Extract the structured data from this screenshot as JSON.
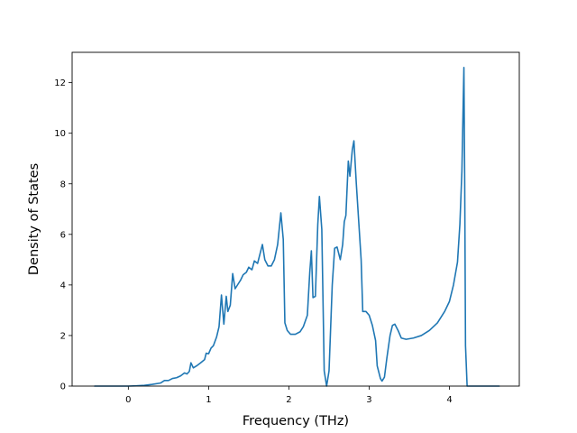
{
  "chart_data": {
    "type": "line",
    "title": "",
    "xlabel": "Frequency (THz)",
    "ylabel": "Density of States",
    "xlim": [
      -0.7,
      4.87
    ],
    "ylim": [
      0,
      13.2
    ],
    "xticks": [
      0,
      1,
      2,
      3,
      4
    ],
    "yticks": [
      0,
      2,
      4,
      6,
      8,
      10,
      12
    ],
    "grid": false,
    "series": [
      {
        "color": "#1f77b4",
        "points": [
          [
            -0.42,
            0.0
          ],
          [
            0.0,
            0.0
          ],
          [
            0.1,
            0.01
          ],
          [
            0.2,
            0.03
          ],
          [
            0.3,
            0.07
          ],
          [
            0.4,
            0.12
          ],
          [
            0.45,
            0.22
          ],
          [
            0.5,
            0.22
          ],
          [
            0.55,
            0.3
          ],
          [
            0.6,
            0.33
          ],
          [
            0.65,
            0.4
          ],
          [
            0.7,
            0.52
          ],
          [
            0.73,
            0.48
          ],
          [
            0.76,
            0.58
          ],
          [
            0.78,
            0.92
          ],
          [
            0.81,
            0.72
          ],
          [
            0.85,
            0.8
          ],
          [
            0.9,
            0.92
          ],
          [
            0.95,
            1.05
          ],
          [
            0.97,
            1.3
          ],
          [
            1.0,
            1.28
          ],
          [
            1.03,
            1.5
          ],
          [
            1.06,
            1.6
          ],
          [
            1.1,
            1.95
          ],
          [
            1.13,
            2.35
          ],
          [
            1.16,
            3.6
          ],
          [
            1.19,
            2.45
          ],
          [
            1.22,
            3.55
          ],
          [
            1.24,
            2.95
          ],
          [
            1.27,
            3.2
          ],
          [
            1.3,
            4.45
          ],
          [
            1.33,
            3.85
          ],
          [
            1.36,
            4.0
          ],
          [
            1.4,
            4.2
          ],
          [
            1.43,
            4.4
          ],
          [
            1.47,
            4.5
          ],
          [
            1.5,
            4.7
          ],
          [
            1.54,
            4.6
          ],
          [
            1.57,
            4.95
          ],
          [
            1.61,
            4.85
          ],
          [
            1.65,
            5.35
          ],
          [
            1.67,
            5.6
          ],
          [
            1.7,
            5.0
          ],
          [
            1.74,
            4.75
          ],
          [
            1.78,
            4.75
          ],
          [
            1.82,
            5.0
          ],
          [
            1.86,
            5.6
          ],
          [
            1.9,
            6.85
          ],
          [
            1.93,
            5.8
          ],
          [
            1.95,
            2.5
          ],
          [
            1.98,
            2.2
          ],
          [
            2.02,
            2.05
          ],
          [
            2.08,
            2.05
          ],
          [
            2.14,
            2.15
          ],
          [
            2.18,
            2.35
          ],
          [
            2.23,
            2.8
          ],
          [
            2.26,
            4.5
          ],
          [
            2.28,
            5.35
          ],
          [
            2.3,
            3.5
          ],
          [
            2.33,
            3.55
          ],
          [
            2.36,
            6.4
          ],
          [
            2.38,
            7.5
          ],
          [
            2.41,
            6.2
          ],
          [
            2.44,
            0.6
          ],
          [
            2.47,
            0.0
          ],
          [
            2.5,
            0.6
          ],
          [
            2.54,
            4.0
          ],
          [
            2.57,
            5.45
          ],
          [
            2.6,
            5.5
          ],
          [
            2.64,
            5.0
          ],
          [
            2.67,
            5.6
          ],
          [
            2.69,
            6.5
          ],
          [
            2.71,
            6.75
          ],
          [
            2.74,
            8.9
          ],
          [
            2.76,
            8.3
          ],
          [
            2.79,
            9.35
          ],
          [
            2.81,
            9.7
          ],
          [
            2.84,
            8.0
          ],
          [
            2.87,
            6.5
          ],
          [
            2.9,
            5.0
          ],
          [
            2.92,
            2.95
          ],
          [
            2.96,
            2.95
          ],
          [
            3.0,
            2.8
          ],
          [
            3.04,
            2.4
          ],
          [
            3.08,
            1.8
          ],
          [
            3.1,
            0.8
          ],
          [
            3.14,
            0.3
          ],
          [
            3.16,
            0.2
          ],
          [
            3.19,
            0.35
          ],
          [
            3.22,
            1.1
          ],
          [
            3.26,
            2.0
          ],
          [
            3.29,
            2.4
          ],
          [
            3.32,
            2.45
          ],
          [
            3.36,
            2.2
          ],
          [
            3.4,
            1.9
          ],
          [
            3.46,
            1.85
          ],
          [
            3.55,
            1.9
          ],
          [
            3.65,
            2.0
          ],
          [
            3.75,
            2.2
          ],
          [
            3.85,
            2.5
          ],
          [
            3.94,
            2.95
          ],
          [
            4.0,
            3.35
          ],
          [
            4.05,
            4.0
          ],
          [
            4.1,
            4.9
          ],
          [
            4.13,
            6.4
          ],
          [
            4.155,
            8.5
          ],
          [
            4.17,
            11.0
          ],
          [
            4.18,
            12.6
          ],
          [
            4.19,
            8.0
          ],
          [
            4.2,
            1.6
          ],
          [
            4.22,
            0.0
          ],
          [
            4.4,
            0.0
          ],
          [
            4.62,
            0.0
          ]
        ]
      }
    ]
  }
}
